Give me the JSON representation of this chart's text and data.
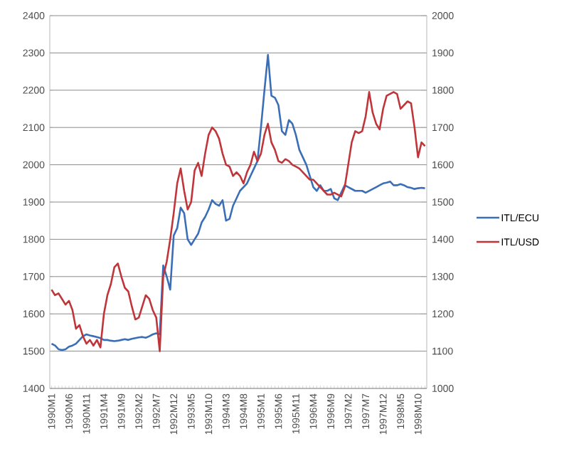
{
  "chart_data": {
    "type": "line",
    "categories": [
      "1990M1",
      null,
      null,
      null,
      null,
      "1990M6",
      null,
      null,
      null,
      null,
      "1990M11",
      null,
      null,
      null,
      null,
      "1991M4",
      null,
      null,
      null,
      null,
      "1991M9",
      null,
      null,
      null,
      null,
      "1992M2",
      null,
      null,
      null,
      null,
      "1992M7",
      null,
      null,
      null,
      null,
      "1992M12",
      null,
      null,
      null,
      null,
      "1993M5",
      null,
      null,
      null,
      null,
      "1993M10",
      null,
      null,
      null,
      null,
      "1994M3",
      null,
      null,
      null,
      null,
      "1994M8",
      null,
      null,
      null,
      null,
      "1995M1",
      null,
      null,
      null,
      null,
      "1995M6",
      null,
      null,
      null,
      null,
      "1995M11",
      null,
      null,
      null,
      null,
      "1996M4",
      null,
      null,
      null,
      null,
      "1996M9",
      null,
      null,
      null,
      null,
      "1997M2",
      null,
      null,
      null,
      null,
      "1997M7",
      null,
      null,
      null,
      null,
      "1997M12",
      null,
      null,
      null,
      null,
      "1998M5",
      null,
      null,
      null,
      null,
      "1998M10",
      null,
      null
    ],
    "series": [
      {
        "name": "ITL/ECU",
        "color": "#3a6fb8",
        "values": [
          1520,
          1515,
          1505,
          1503,
          1505,
          1512,
          1515,
          1520,
          1530,
          1540,
          1545,
          1542,
          1540,
          1538,
          1535,
          1530,
          1530,
          1528,
          1527,
          1528,
          1530,
          1532,
          1530,
          1533,
          1535,
          1537,
          1538,
          1536,
          1540,
          1545,
          1548,
          1545,
          1730,
          1700,
          1665,
          1810,
          1830,
          1885,
          1870,
          1800,
          1785,
          1800,
          1815,
          1845,
          1860,
          1880,
          1905,
          1895,
          1890,
          1905,
          1850,
          1855,
          1890,
          1910,
          1930,
          1940,
          1950,
          1970,
          1990,
          2010,
          2100,
          2200,
          2295,
          2185,
          2180,
          2160,
          2090,
          2080,
          2120,
          2110,
          2080,
          2040,
          2020,
          2000,
          1970,
          1940,
          1930,
          1945,
          1930,
          1930,
          1935,
          1910,
          1905,
          1925,
          1945,
          1940,
          1935,
          1930,
          1930,
          1930,
          1925,
          1930,
          1935,
          1940,
          1945,
          1950,
          1952,
          1955,
          1945,
          1945,
          1948,
          1945,
          1940,
          1938,
          1935,
          1937,
          1938,
          1937
        ]
      },
      {
        "name": "ITL/USD",
        "color": "#c0353a",
        "axis": "y2",
        "values": [
          1265,
          1250,
          1255,
          1240,
          1225,
          1235,
          1210,
          1160,
          1170,
          1140,
          1120,
          1130,
          1115,
          1130,
          1110,
          1200,
          1250,
          1280,
          1325,
          1335,
          1300,
          1270,
          1260,
          1220,
          1185,
          1190,
          1220,
          1250,
          1240,
          1210,
          1190,
          1100,
          1300,
          1340,
          1400,
          1470,
          1550,
          1590,
          1530,
          1480,
          1500,
          1585,
          1605,
          1570,
          1630,
          1680,
          1700,
          1690,
          1670,
          1630,
          1600,
          1595,
          1570,
          1580,
          1570,
          1550,
          1580,
          1600,
          1635,
          1610,
          1630,
          1680,
          1710,
          1660,
          1640,
          1610,
          1605,
          1615,
          1610,
          1600,
          1595,
          1590,
          1580,
          1570,
          1560,
          1560,
          1550,
          1540,
          1530,
          1520,
          1520,
          1525,
          1520,
          1515,
          1540,
          1600,
          1660,
          1690,
          1685,
          1690,
          1730,
          1795,
          1740,
          1710,
          1695,
          1750,
          1785,
          1790,
          1795,
          1790,
          1750,
          1760,
          1770,
          1765,
          1700,
          1620,
          1660,
          1650
        ]
      }
    ],
    "ylim": [
      1400,
      2400
    ],
    "yticks": [
      1400,
      1500,
      1600,
      1700,
      1800,
      1900,
      2000,
      2100,
      2200,
      2300,
      2400
    ],
    "y2lim": [
      1000,
      2000
    ],
    "y2ticks": [
      1000,
      1100,
      1200,
      1300,
      1400,
      1500,
      1600,
      1700,
      1800,
      1900,
      2000
    ],
    "grid": "y",
    "legend": "right"
  }
}
